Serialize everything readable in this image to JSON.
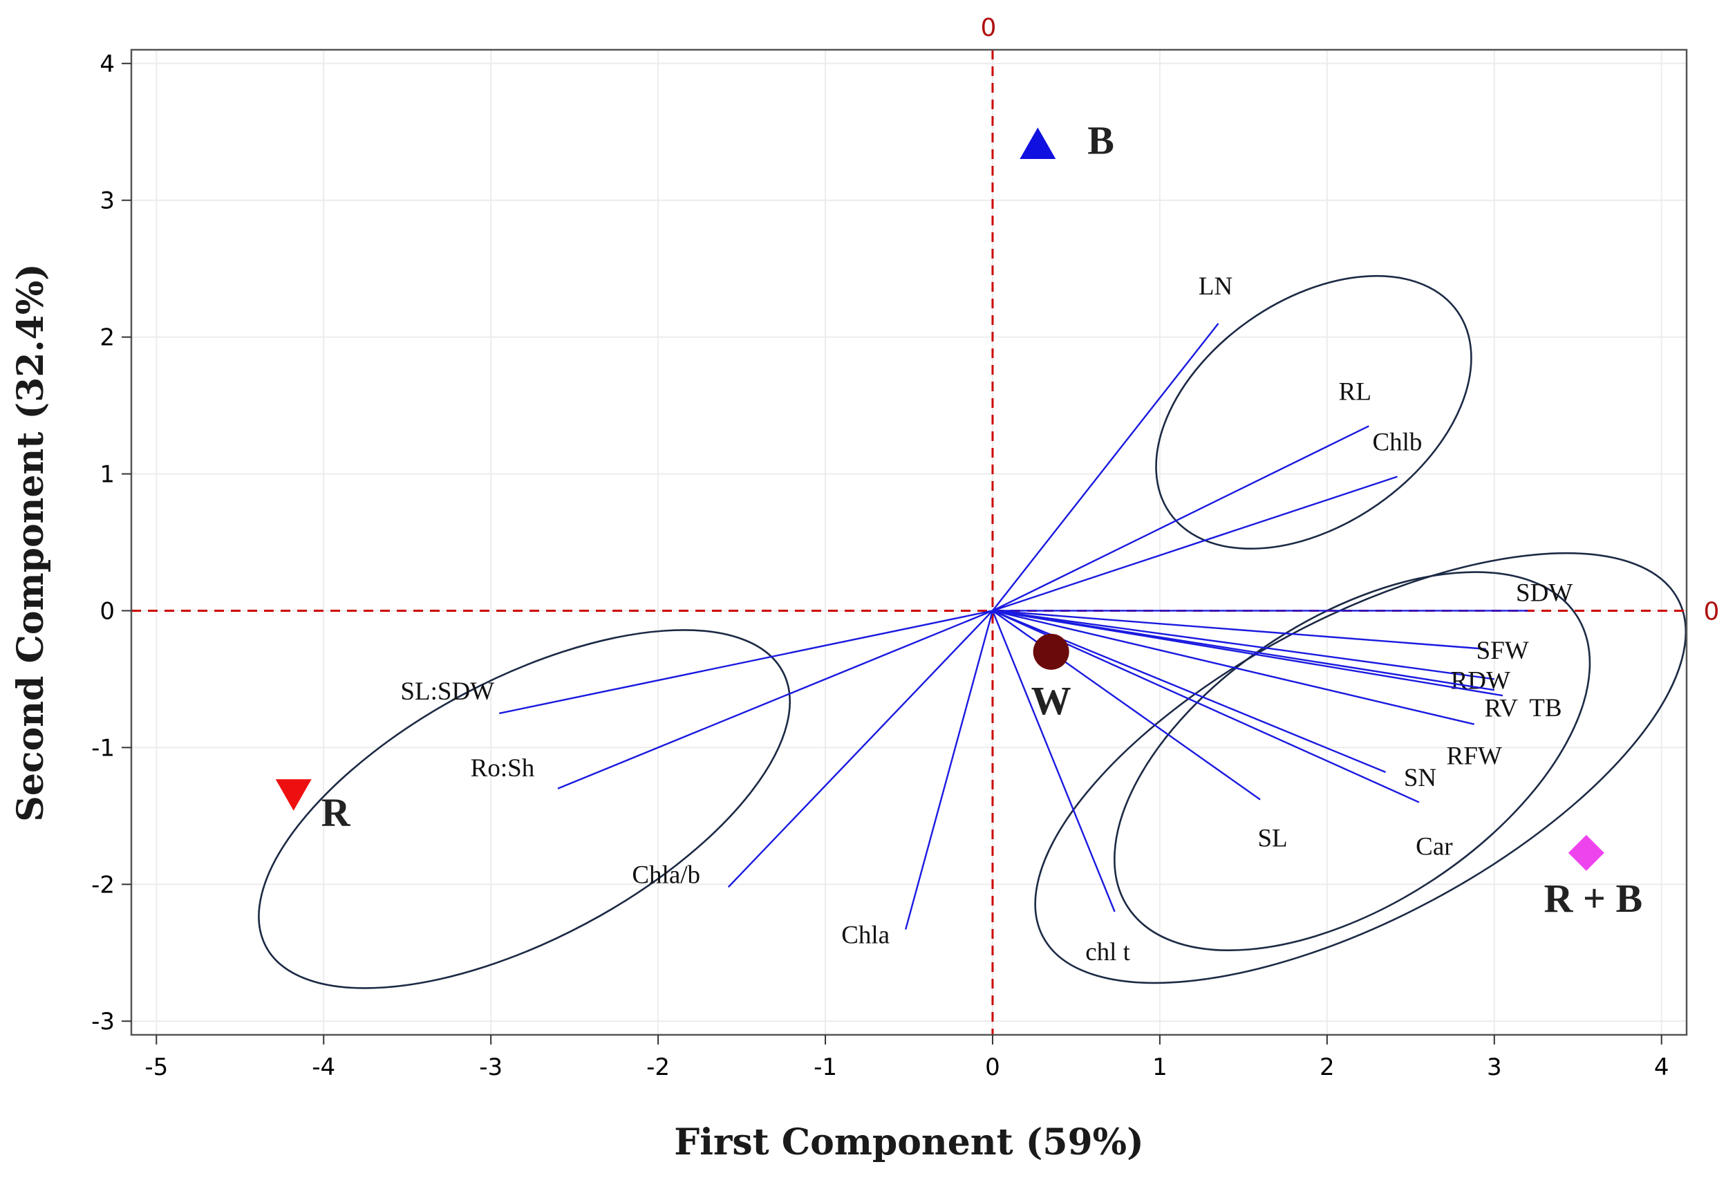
{
  "chart_data": {
    "type": "scatter",
    "subtype": "pca-biplot",
    "xlabel": "First Component (59%)",
    "ylabel": "Second Component (32.4%)",
    "xlim": [
      -5.15,
      4.15
    ],
    "ylim": [
      -3.1,
      4.1
    ],
    "xticks": [
      "-5",
      "-4",
      "-3",
      "-2",
      "-1",
      "0",
      "1",
      "2",
      "3",
      "4"
    ],
    "yticks": [
      "-3",
      "-2",
      "-1",
      "0",
      "1",
      "2",
      "3",
      "4"
    ],
    "grid": true,
    "reference_lines": [
      {
        "axis": "x",
        "value": 0,
        "label": "0",
        "color": "#cc0000"
      },
      {
        "axis": "y",
        "value": 0,
        "label": "0",
        "color": "#cc0000"
      }
    ],
    "loadings": [
      {
        "name": "LN",
        "x": 1.35,
        "y": 2.1
      },
      {
        "name": "RL",
        "x": 2.25,
        "y": 1.35
      },
      {
        "name": "Chlb",
        "x": 2.42,
        "y": 0.98
      },
      {
        "name": "SDW",
        "x": 3.2,
        "y": 0.0
      },
      {
        "name": "SFW",
        "x": 2.95,
        "y": -0.28
      },
      {
        "name": "RDW",
        "x": 3.0,
        "y": -0.5
      },
      {
        "name": "TB",
        "x": 3.05,
        "y": -0.62
      },
      {
        "name": "RV",
        "x": 3.0,
        "y": -0.58
      },
      {
        "name": "RFW",
        "x": 2.88,
        "y": -0.83
      },
      {
        "name": "SN",
        "x": 2.35,
        "y": -1.18
      },
      {
        "name": "Car",
        "x": 2.55,
        "y": -1.4
      },
      {
        "name": "SL",
        "x": 1.6,
        "y": -1.38
      },
      {
        "name": "chl t",
        "x": 0.73,
        "y": -2.2
      },
      {
        "name": "Chla",
        "x": -0.52,
        "y": -2.33
      },
      {
        "name": "Chla/b",
        "x": -1.58,
        "y": -2.02
      },
      {
        "name": "Ro:Sh",
        "x": -2.6,
        "y": -1.3
      },
      {
        "name": "SL:SDW",
        "x": -2.95,
        "y": -0.75
      }
    ],
    "scores": [
      {
        "name": "B",
        "x": 0.27,
        "y": 3.4,
        "marker": "triangle-up",
        "color": "#1010e0"
      },
      {
        "name": "W",
        "x": 0.35,
        "y": -0.3,
        "marker": "circle",
        "color": "#6b0a0a"
      },
      {
        "name": "R",
        "x": -4.18,
        "y": -1.33,
        "marker": "triangle-down",
        "color": "#ee1010"
      },
      {
        "name": "R + B",
        "x": 3.55,
        "y": -1.77,
        "marker": "diamond",
        "color": "#ee44ee"
      }
    ],
    "ellipses": [
      {
        "cx": 1.92,
        "cy": 1.45,
        "rx": 1.05,
        "ry": 0.82,
        "angle": -35
      },
      {
        "cx": -2.8,
        "cy": -1.45,
        "rx": 1.75,
        "ry": 0.95,
        "angle": -28
      },
      {
        "cx": 2.15,
        "cy": -1.1,
        "rx": 1.6,
        "ry": 1.05,
        "angle": -33
      },
      {
        "cx": 2.2,
        "cy": -1.15,
        "rx": 2.15,
        "ry": 1.1,
        "angle": -28
      }
    ]
  }
}
